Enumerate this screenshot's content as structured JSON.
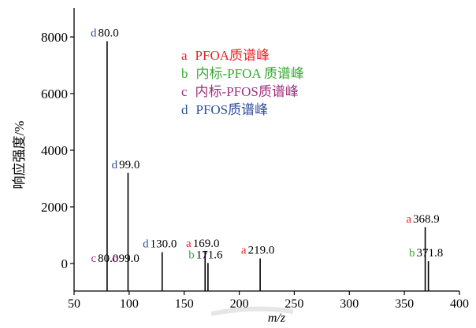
{
  "chart_data": {
    "type": "bar",
    "title": "",
    "xlabel": "m/z",
    "ylabel": "响应强度/%",
    "xlim": [
      50,
      400
    ],
    "ylim": [
      -500,
      9000
    ],
    "x_ticks": [
      50,
      100,
      150,
      200,
      250,
      300,
      350,
      400
    ],
    "y_ticks": [
      0,
      2000,
      4000,
      6000,
      8000
    ],
    "grid": false,
    "legend_position": "top-center",
    "legend": [
      {
        "key": "a",
        "label": "PFOA质谱峰",
        "color": "#e8252a"
      },
      {
        "key": "b",
        "label": "内标-PFOA 质谱峰",
        "color": "#3aa935"
      },
      {
        "key": "c",
        "label": "内标-PFOS质谱峰",
        "color": "#a0307e"
      },
      {
        "key": "d",
        "label": "PFOS质谱峰",
        "color": "#2e4f9c"
      }
    ],
    "peaks": [
      {
        "series": "c",
        "x": 80.0,
        "y": 0,
        "label": "80.0"
      },
      {
        "series": "d",
        "x": 80.0,
        "y": 7850,
        "label": "80.0"
      },
      {
        "series": "c",
        "x": 99.0,
        "y": 0,
        "label": "99.0"
      },
      {
        "series": "d",
        "x": 99.0,
        "y": 3200,
        "label": "99.0"
      },
      {
        "series": "d",
        "x": 130.0,
        "y": 400,
        "label": "130.0"
      },
      {
        "series": "a",
        "x": 169.0,
        "y": 420,
        "label": "169.0"
      },
      {
        "series": "b",
        "x": 171.6,
        "y": 20,
        "label": "171.6"
      },
      {
        "series": "a",
        "x": 219.0,
        "y": 180,
        "label": "219.0"
      },
      {
        "series": "a",
        "x": 368.9,
        "y": 1280,
        "label": "368.9"
      },
      {
        "series": "b",
        "x": 371.8,
        "y": 80,
        "label": "371.8"
      }
    ]
  }
}
